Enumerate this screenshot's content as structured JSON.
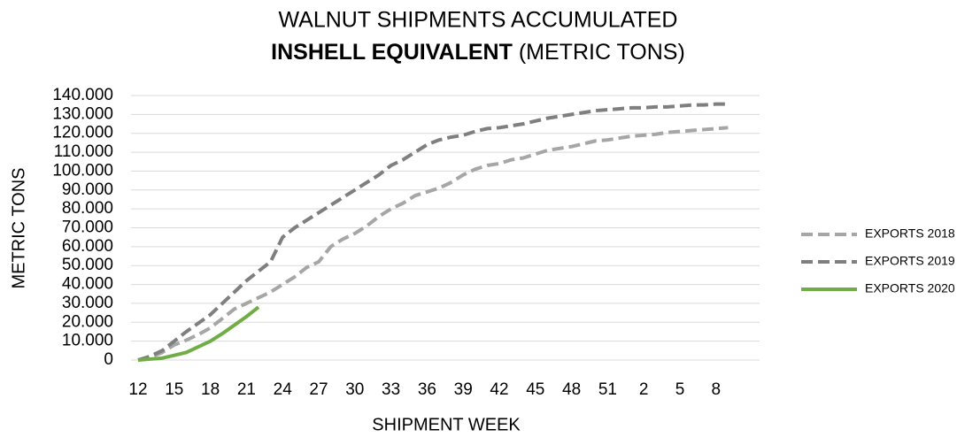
{
  "chart_data": {
    "type": "line",
    "title": "WALNUT SHIPMENTS ACCUMULATED",
    "subtitle_bold": "INSHELL EQUIVALENT",
    "subtitle": "(METRIC TONS)",
    "x_label": "SHIPMENT WEEK",
    "y_label": "METRIC TONS",
    "categories": [
      12,
      null,
      null,
      15,
      null,
      null,
      18,
      null,
      null,
      21,
      null,
      null,
      24,
      null,
      null,
      27,
      null,
      null,
      30,
      null,
      null,
      33,
      null,
      null,
      36,
      null,
      null,
      39,
      null,
      null,
      42,
      null,
      null,
      45,
      null,
      null,
      48,
      null,
      null,
      51,
      null,
      null,
      2,
      null,
      null,
      5,
      null,
      null,
      8,
      null
    ],
    "series": [
      {
        "name": "EXPORTS 2018",
        "color": "#a6a6a6",
        "dashed": true,
        "values": [
          0,
          1500,
          4000,
          8000,
          10500,
          13500,
          17000,
          22000,
          27000,
          30000,
          33000,
          36000,
          40000,
          44000,
          49000,
          52000,
          60000,
          64000,
          67000,
          71000,
          76000,
          80000,
          83000,
          87000,
          89000,
          91000,
          94000,
          98000,
          101000,
          103000,
          104000,
          106000,
          107000,
          109000,
          111000,
          112000,
          113000,
          114500,
          116000,
          116500,
          117500,
          118500,
          119000,
          119500,
          120500,
          121000,
          121500,
          122000,
          122500,
          123000
        ]
      },
      {
        "name": "EXPORTS 2019",
        "color": "#7f7f7f",
        "dashed": true,
        "values": [
          0,
          2000,
          5000,
          10000,
          15000,
          19500,
          24000,
          30000,
          36000,
          42000,
          47000,
          52000,
          65000,
          70000,
          74000,
          78000,
          82000,
          86000,
          90000,
          94000,
          98000,
          103000,
          106000,
          110000,
          114000,
          116500,
          118000,
          119000,
          121000,
          122500,
          123000,
          124000,
          125000,
          126500,
          128000,
          129000,
          130000,
          131000,
          132000,
          132500,
          133000,
          133500,
          133500,
          134000,
          134000,
          134500,
          135000,
          135000,
          135500,
          135500
        ]
      },
      {
        "name": "EXPORTS 2020",
        "color": "#70ad47",
        "dashed": false,
        "values": [
          0,
          500,
          1000,
          2500,
          4000,
          7000,
          10000,
          14000,
          18500,
          23000,
          28000,
          null,
          null,
          null,
          null,
          null,
          null,
          null,
          null,
          null,
          null,
          null,
          null,
          null,
          null,
          null,
          null,
          null,
          null,
          null,
          null,
          null,
          null,
          null,
          null,
          null,
          null,
          null,
          null,
          null,
          null,
          null,
          null,
          null,
          null,
          null,
          null,
          null,
          null,
          null
        ]
      }
    ],
    "ylim": [
      0,
      140000
    ],
    "yticks": [
      0,
      {
        "value": 10000,
        "label": "10.000"
      },
      {
        "value": 20000,
        "label": "20.000"
      },
      {
        "value": 30000,
        "label": "30.000"
      },
      {
        "value": 40000,
        "label": "40.000"
      },
      {
        "value": 50000,
        "label": "50.000"
      },
      {
        "value": 60000,
        "label": "60.000"
      },
      {
        "value": 70000,
        "label": "70.000"
      },
      {
        "value": 80000,
        "label": "80.000"
      },
      {
        "value": 90000,
        "label": "90.000"
      },
      {
        "value": 100000,
        "label": "100.000"
      },
      {
        "value": 110000,
        "label": "110.000"
      },
      {
        "value": 120000,
        "label": "120.000"
      },
      {
        "value": 130000,
        "label": "130.000"
      },
      {
        "value": 140000,
        "label": "140.000"
      }
    ],
    "grid": true,
    "legend": "right"
  }
}
